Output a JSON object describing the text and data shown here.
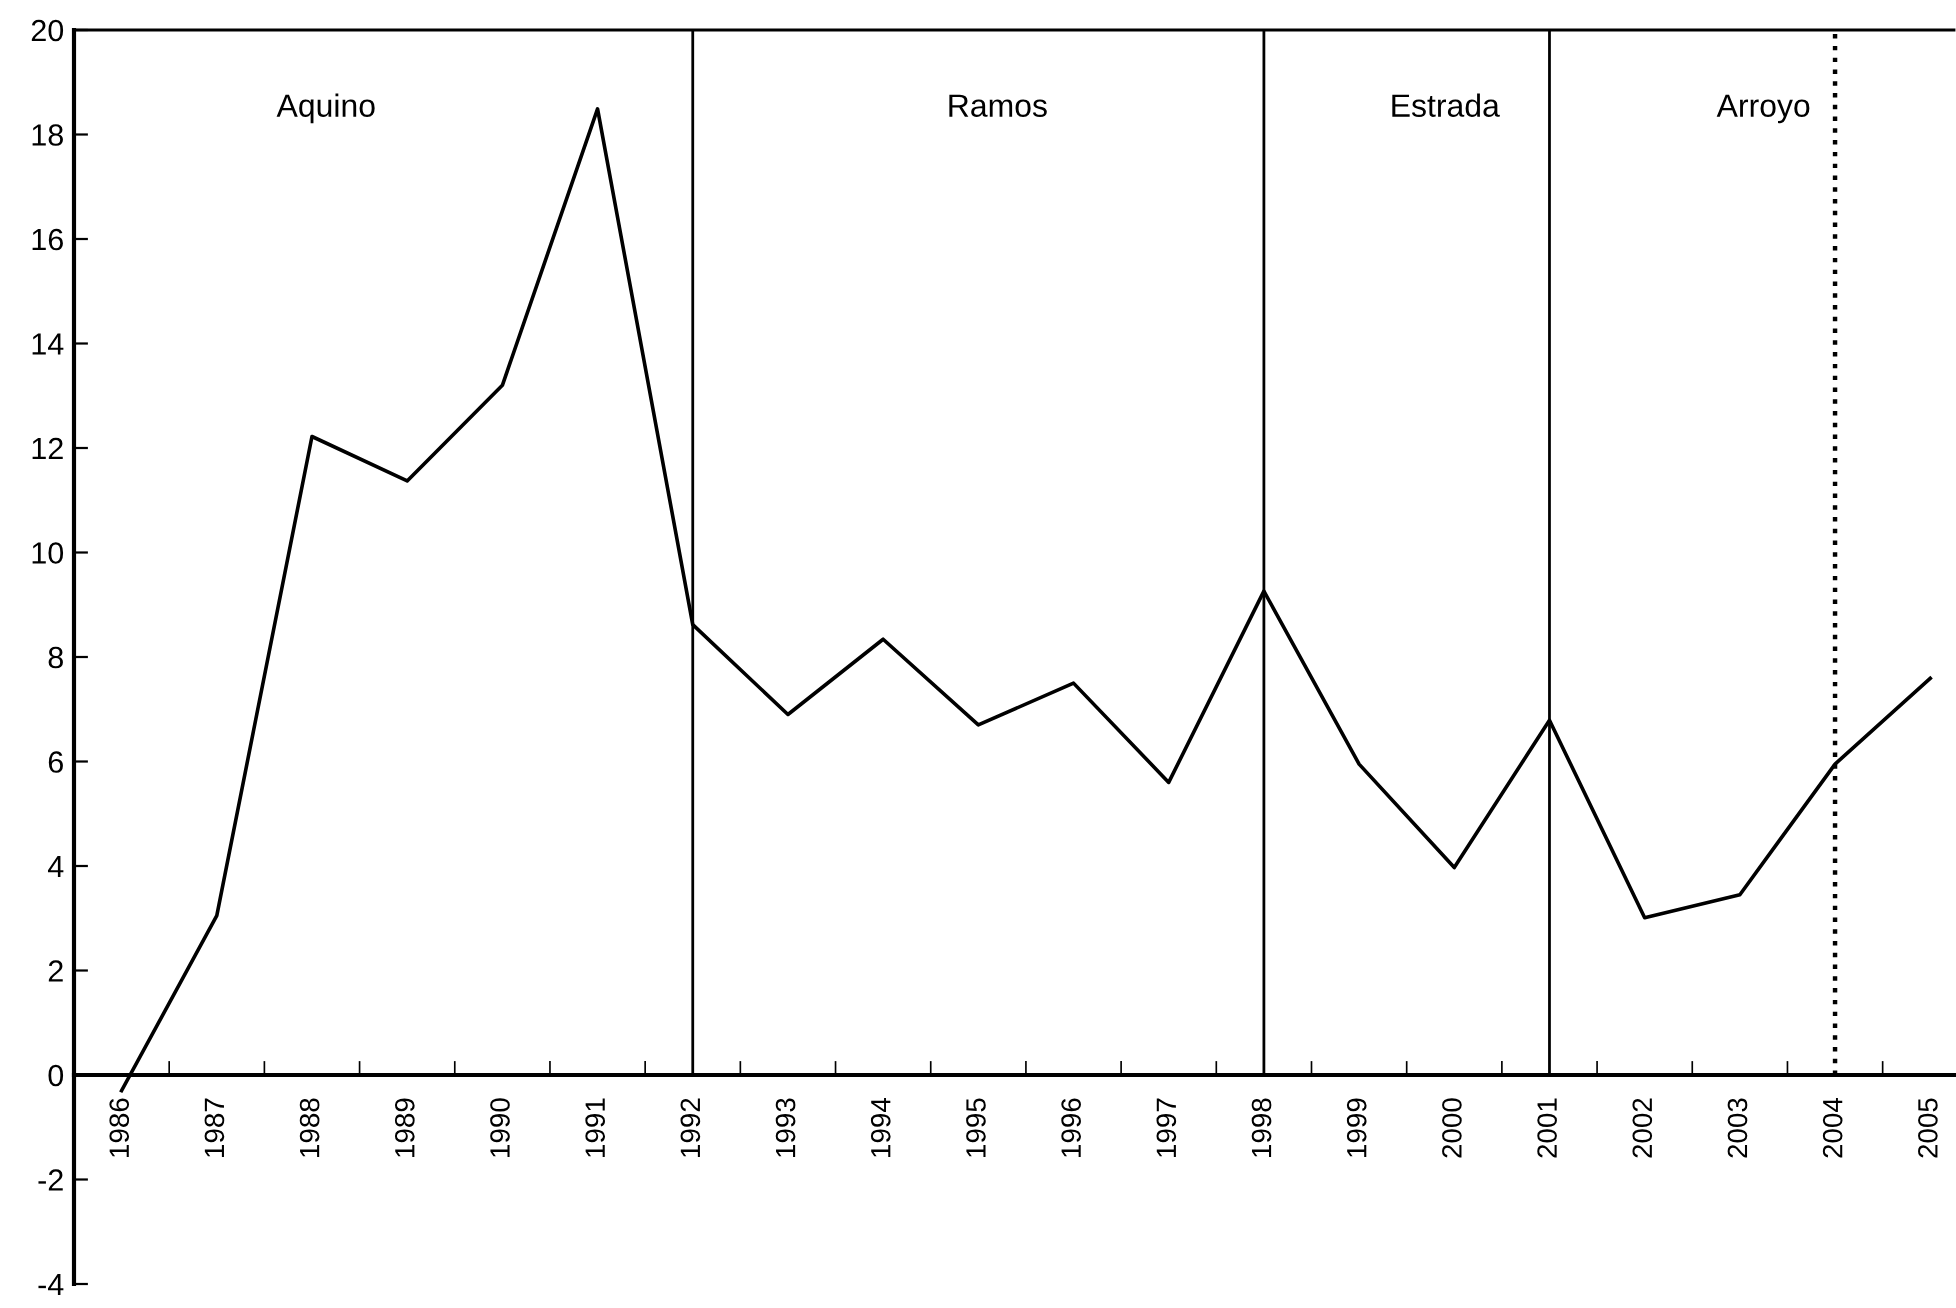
{
  "chart_data": {
    "type": "line",
    "categories": [
      "1986",
      "1987",
      "1988",
      "1989",
      "1990",
      "1991",
      "1992",
      "1993",
      "1994",
      "1995",
      "1996",
      "1997",
      "1998",
      "1999",
      "2000",
      "2001",
      "2002",
      "2003",
      "2004",
      "2005"
    ],
    "series": [
      {
        "color": "#000000",
        "values": [
          -0.3,
          3.05,
          12.22,
          11.37,
          13.2,
          18.49,
          8.62,
          6.9,
          8.34,
          6.7,
          7.5,
          5.6,
          9.26,
          5.95,
          3.97,
          6.79,
          3.01,
          3.45,
          5.95,
          7.59
        ]
      }
    ],
    "ylim": [
      -4,
      20
    ],
    "yticks": [
      -4,
      -2,
      0,
      2,
      4,
      6,
      8,
      10,
      12,
      14,
      16,
      18,
      20
    ],
    "ref_lines": [
      {
        "axis": "x",
        "value": "1992",
        "color": "#000000",
        "line_style": "solid"
      },
      {
        "axis": "x",
        "value": "1998",
        "color": "#000000",
        "line_style": "solid"
      },
      {
        "axis": "x",
        "value": "2001",
        "color": "#000000",
        "line_style": "solid"
      },
      {
        "axis": "x",
        "value": "2004",
        "color": "#000000",
        "line_style": "dotted"
      }
    ],
    "annotations": [
      "Aquino",
      "Ramos",
      "Estrada",
      "Arroyo"
    ],
    "grid": false,
    "legend": false,
    "marker": "none",
    "line_style": "solid"
  }
}
